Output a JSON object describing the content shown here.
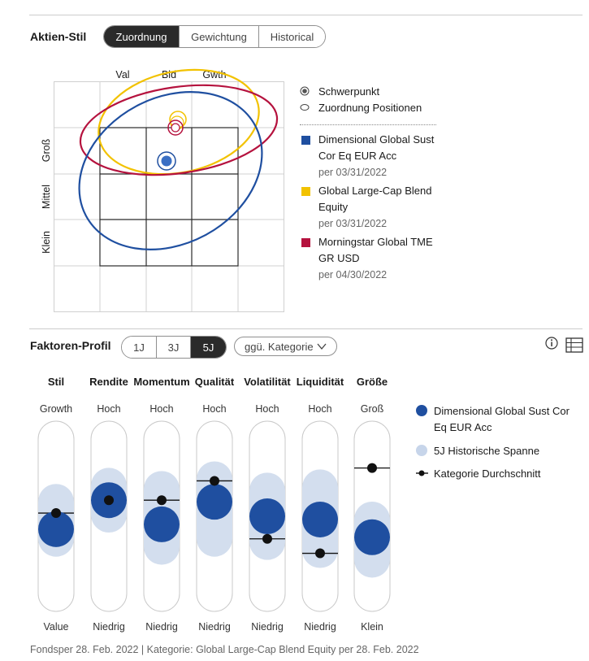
{
  "style_section": {
    "title": "Aktien-Stil",
    "tabs": [
      {
        "label": "Zuordnung",
        "active": true
      },
      {
        "label": "Gewichtung",
        "active": false
      },
      {
        "label": "Historical",
        "active": false
      }
    ],
    "legend": {
      "marker_center": "Schwerpunkt",
      "marker_positions": "Zuordnung Positionen",
      "items": [
        {
          "line1": "Dimensional Global Sust",
          "line2": "Cor Eq EUR Acc",
          "date": "per 03/31/2022",
          "color": "#1f4fa0"
        },
        {
          "line1": "Global Large-Cap Blend",
          "line2": "Equity",
          "date": "per 03/31/2022",
          "color": "#f2c200"
        },
        {
          "line1": "Morningstar Global TME",
          "line2": "GR USD",
          "date": "per 04/30/2022",
          "color": "#b5123e"
        }
      ]
    }
  },
  "factor_section": {
    "title": "Faktoren-Profil",
    "tabs": [
      {
        "label": "1J",
        "active": false
      },
      {
        "label": "3J",
        "active": false
      },
      {
        "label": "5J",
        "active": true
      }
    ],
    "compare_dropdown": "ggü. Kategorie",
    "legend": {
      "fund_line1": "Dimensional Global Sust Cor",
      "fund_line2": "Eq EUR Acc",
      "range": "5J Historische Spanne",
      "category": "Kategorie Durchschnitt"
    }
  },
  "chart_data": [
    {
      "type": "scatter",
      "title": "Aktien-Stil",
      "x_labels": [
        "Val",
        "Bld",
        "Gwth"
      ],
      "y_labels": [
        "Groß",
        "Mittel",
        "Klein"
      ],
      "series": [
        {
          "name": "Dimensional Global Sust Cor Eq EUR Acc",
          "color": "#1f4fa0",
          "center": {
            "style": 0.05,
            "size": 0.3
          }
        },
        {
          "name": "Global Large-Cap Blend Equity",
          "color": "#f2c200",
          "center": {
            "style": 0.25,
            "size": 0.9
          }
        },
        {
          "name": "Morningstar Global TME GR USD",
          "color": "#b5123e",
          "center": {
            "style": 0.25,
            "size": 0.75
          }
        }
      ]
    },
    {
      "type": "dot-range",
      "title": "Faktoren-Profil",
      "scale": [
        0,
        1
      ],
      "factors": [
        {
          "name": "Stil",
          "top": "Growth",
          "bottom": "Value",
          "fund": 0.42,
          "range": [
            0.35,
            0.6
          ],
          "category": 0.52
        },
        {
          "name": "Rendite",
          "top": "Hoch",
          "bottom": "Niedrig",
          "fund": 0.6,
          "range": [
            0.5,
            0.7
          ],
          "category": 0.6
        },
        {
          "name": "Momentum",
          "top": "Hoch",
          "bottom": "Niedrig",
          "fund": 0.45,
          "range": [
            0.3,
            0.68
          ],
          "category": 0.6
        },
        {
          "name": "Qualität",
          "top": "Hoch",
          "bottom": "Niedrig",
          "fund": 0.59,
          "range": [
            0.35,
            0.74
          ],
          "category": 0.72
        },
        {
          "name": "Volatilität",
          "top": "Hoch",
          "bottom": "Niedrig",
          "fund": 0.5,
          "range": [
            0.33,
            0.67
          ],
          "category": 0.36
        },
        {
          "name": "Liquidität",
          "top": "Hoch",
          "bottom": "Niedrig",
          "fund": 0.48,
          "range": [
            0.28,
            0.69
          ],
          "category": 0.27
        },
        {
          "name": "Größe",
          "top": "Groß",
          "bottom": "Klein",
          "fund": 0.37,
          "range": [
            0.22,
            0.49
          ],
          "category": 0.8
        }
      ]
    }
  ],
  "footer": "Fondsper 28. Feb. 2022 | Kategorie: Global Large-Cap Blend Equity per 28. Feb. 2022"
}
